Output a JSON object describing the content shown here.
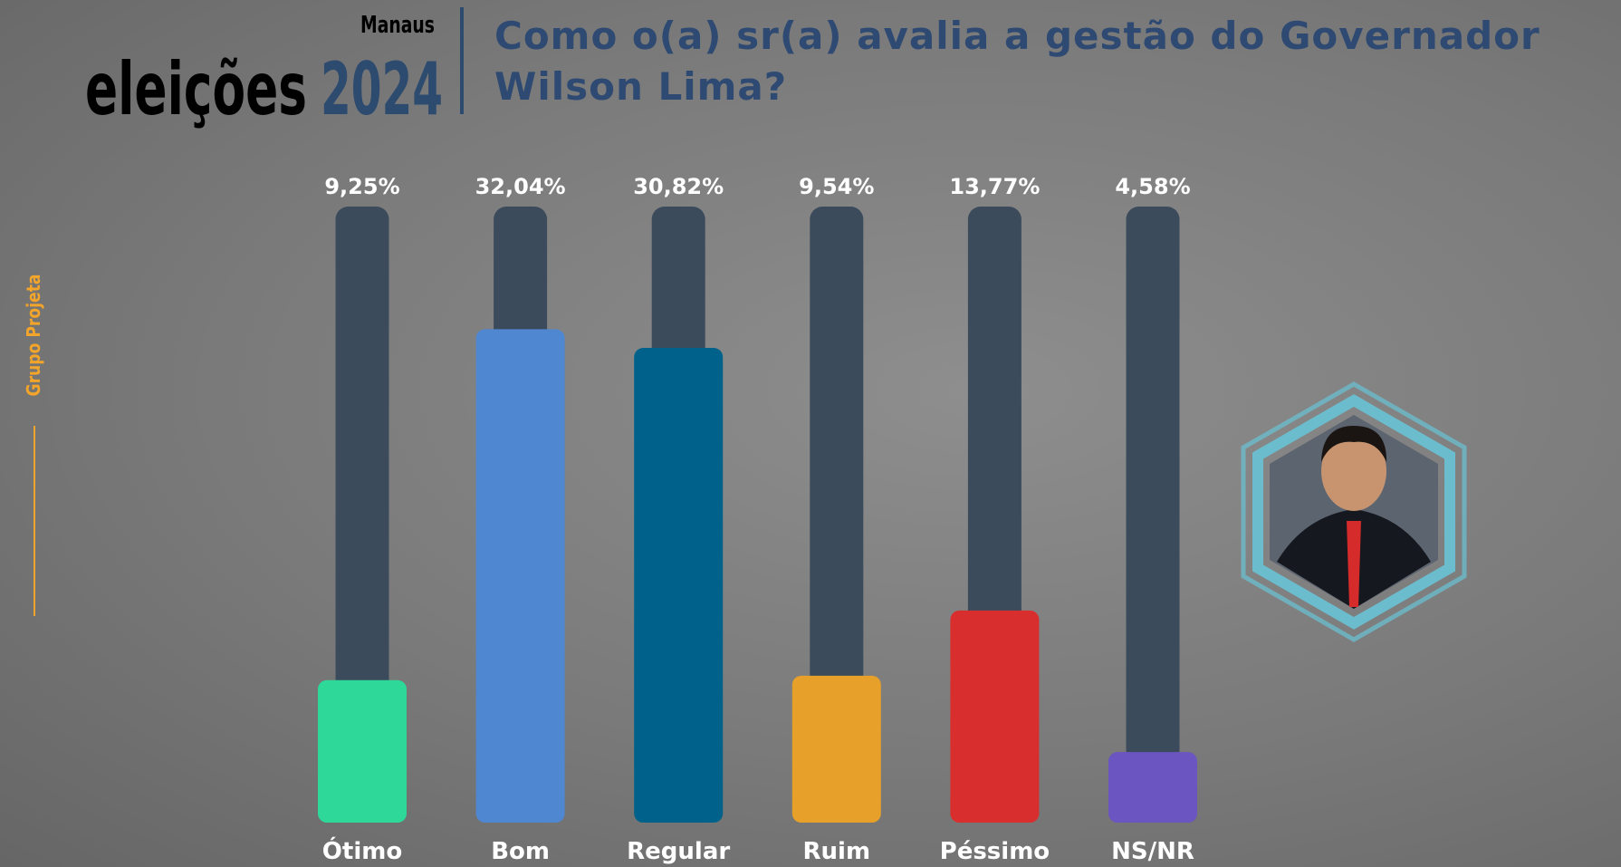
{
  "header": {
    "city": "Manaus",
    "word": "eleições",
    "year": "2024",
    "watermark": "Grupo Projeta"
  },
  "chart_data": {
    "type": "bar",
    "title": "Como o(a) sr(a) avalia a gestão do Governador Wilson Lima?",
    "categories": [
      "Ótimo",
      "Bom",
      "Regular",
      "Ruim",
      "Péssimo",
      "NS/NR"
    ],
    "values": [
      9.25,
      32.04,
      30.82,
      9.54,
      13.77,
      4.58
    ],
    "value_labels": [
      "9,25%",
      "32,04%",
      "30,82%",
      "9,54%",
      "13,77%",
      "4,58%"
    ],
    "colors": [
      "#2ed898",
      "#4f87d0",
      "#00628a",
      "#e7a02a",
      "#d92e2e",
      "#6b55c0"
    ],
    "ylim": [
      0,
      40
    ]
  }
}
